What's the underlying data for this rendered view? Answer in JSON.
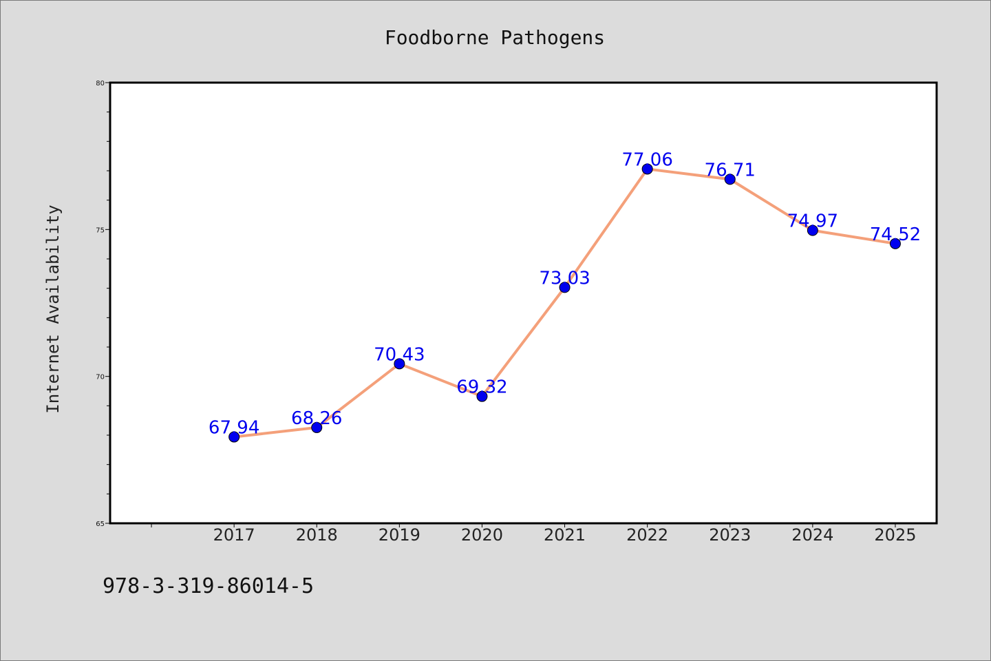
{
  "chart_data": {
    "type": "line",
    "title": "Foodborne Pathogens",
    "xlabel": "",
    "ylabel": "Internet Availability",
    "x": [
      "2017",
      "2018",
      "2019",
      "2020",
      "2021",
      "2022",
      "2023",
      "2024",
      "2025"
    ],
    "series": [
      {
        "values": [
          67.94,
          68.26,
          70.43,
          69.32,
          73.03,
          77.06,
          76.71,
          74.97,
          74.52
        ],
        "data_labels": [
          "67.94",
          "68.26",
          "70.43",
          "69.32",
          "73.03",
          "77.06",
          "76.71",
          "74.97",
          "74.52"
        ],
        "line_color": "#f4a07a",
        "marker_color": "#0000ee"
      }
    ],
    "yticks": [
      "65",
      "70",
      "75",
      "80"
    ],
    "ylim": [
      65,
      80
    ],
    "xlim": [
      2015.5,
      2025.5
    ],
    "grid": false,
    "label_color": "#0000ee"
  },
  "footer_text": "978-3-319-86014-5"
}
